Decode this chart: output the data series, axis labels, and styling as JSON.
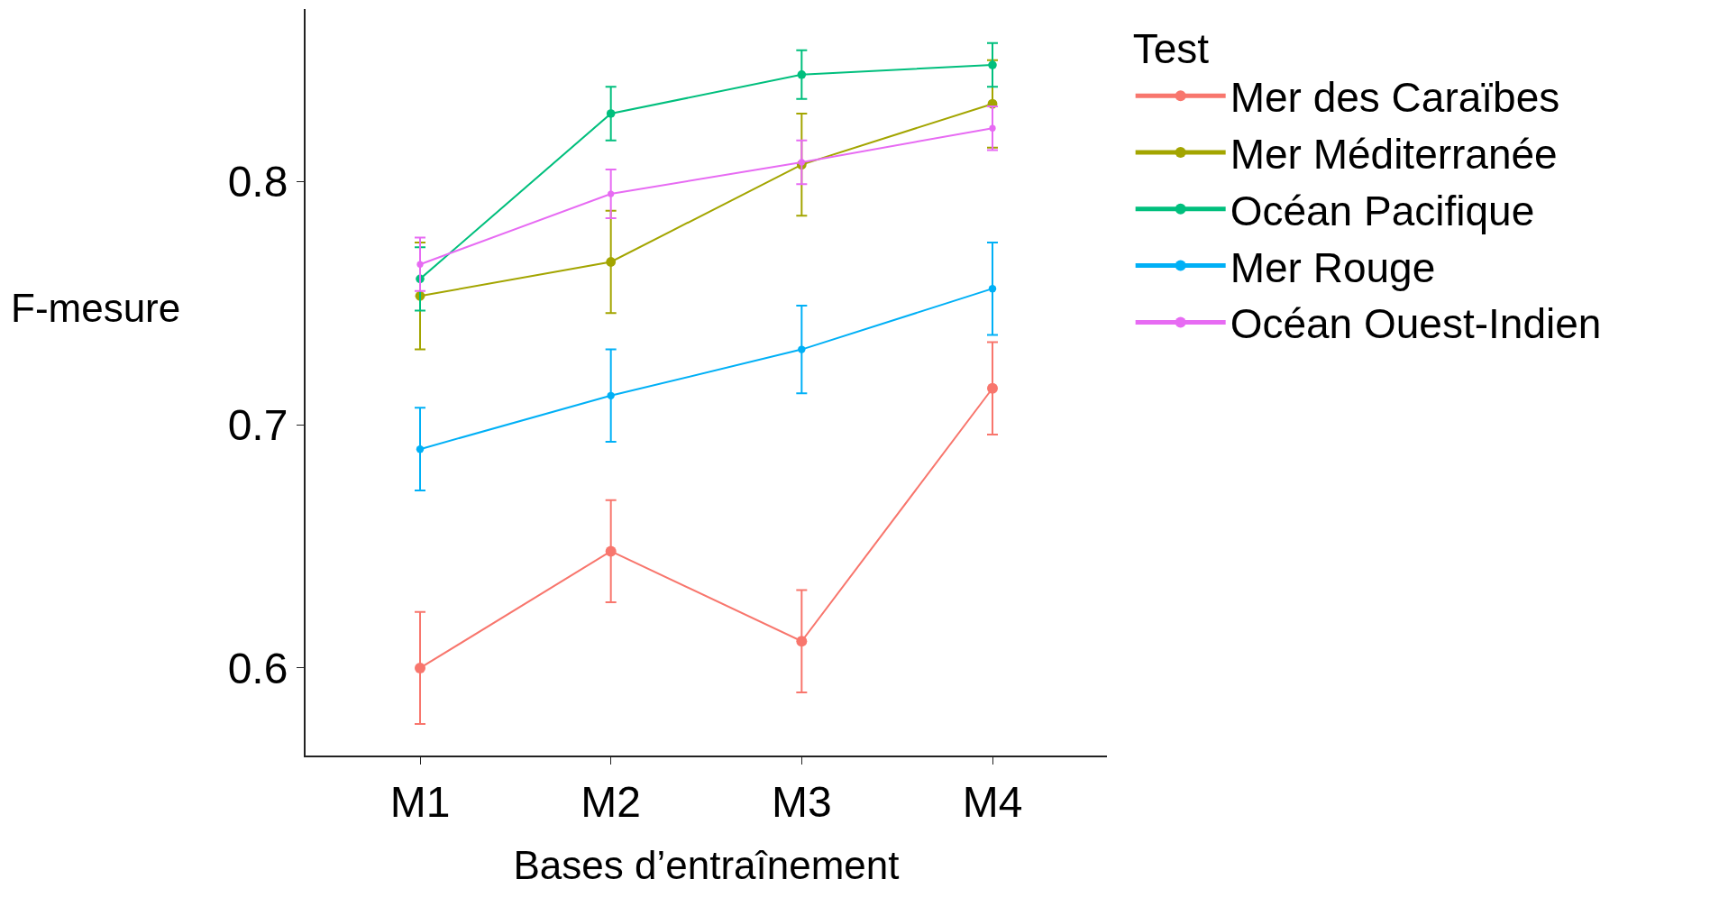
{
  "chart_data": {
    "type": "line",
    "xlabel": "Bases d’entraînement",
    "ylabel": "F-mesure",
    "legend_title": "Test",
    "legend": "right",
    "grid": false,
    "marker": "circle",
    "line_style": "solid",
    "categories": [
      "M1",
      "M2",
      "M3",
      "M4"
    ],
    "ylim": [
      0.564,
      0.871
    ],
    "yticks": [
      0.6,
      0.7,
      0.8
    ],
    "series": [
      {
        "name": "Mer des Caraïbes",
        "color": "#f8766d",
        "values": [
          0.6,
          0.648,
          0.611,
          0.715
        ],
        "errors": [
          0.023,
          0.021,
          0.021,
          0.019
        ]
      },
      {
        "name": "Mer Méditerranée",
        "color": "#a3a500",
        "values": [
          0.753,
          0.767,
          0.807,
          0.832
        ],
        "errors": [
          0.022,
          0.021,
          0.021,
          0.018
        ]
      },
      {
        "name": "Océan Pacifique",
        "color": "#00bf7d",
        "values": [
          0.76,
          0.828,
          0.844,
          0.848
        ],
        "errors": [
          0.013,
          0.011,
          0.01,
          0.009
        ]
      },
      {
        "name": "Mer Rouge",
        "color": "#00b0f6",
        "values": [
          0.69,
          0.712,
          0.731,
          0.756
        ],
        "errors": [
          0.017,
          0.019,
          0.018,
          0.019
        ]
      },
      {
        "name": "Océan Ouest-Indien",
        "color": "#e76bf3",
        "values": [
          0.766,
          0.795,
          0.808,
          0.822
        ],
        "errors": [
          0.011,
          0.01,
          0.009,
          0.009
        ]
      }
    ]
  }
}
